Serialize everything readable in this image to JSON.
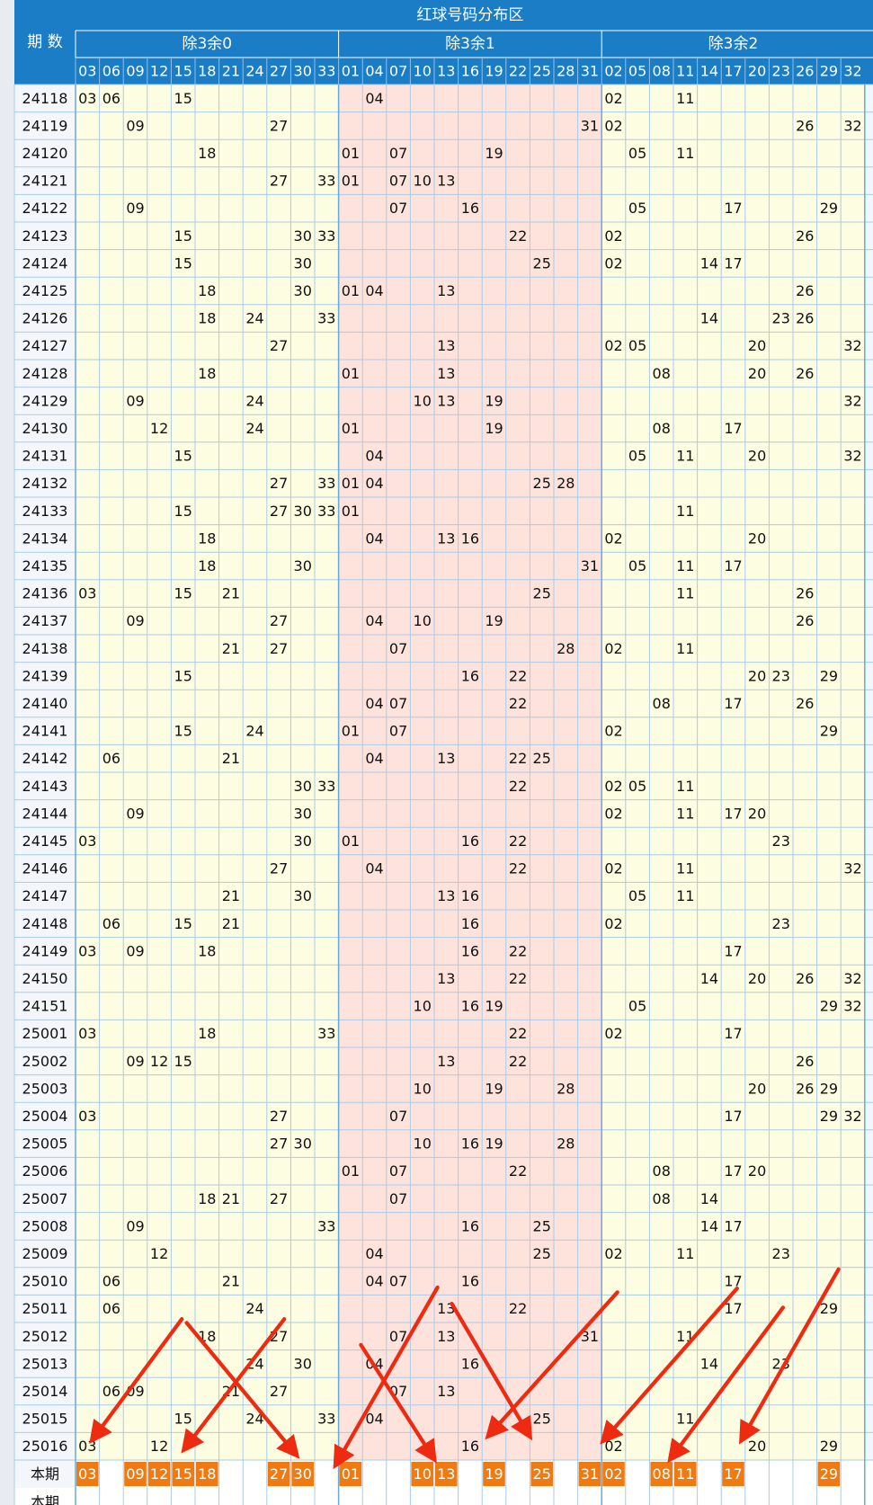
{
  "header": {
    "title": "红球号码分布区",
    "period_label": "期 数"
  },
  "groups": [
    {
      "name": "除3余0",
      "numbers": [
        "03",
        "06",
        "09",
        "12",
        "15",
        "18",
        "21",
        "24",
        "27",
        "30",
        "33"
      ]
    },
    {
      "name": "除3余1",
      "numbers": [
        "01",
        "04",
        "07",
        "10",
        "13",
        "16",
        "19",
        "22",
        "25",
        "28",
        "31"
      ]
    },
    {
      "name": "除3余2",
      "numbers": [
        "02",
        "05",
        "08",
        "11",
        "14",
        "17",
        "20",
        "23",
        "26",
        "29",
        "32"
      ]
    }
  ],
  "rows": [
    {
      "period": "24118",
      "hits": [
        "03",
        "06",
        "15",
        "04",
        "02",
        "11"
      ]
    },
    {
      "period": "24119",
      "hits": [
        "09",
        "27",
        "31",
        "02",
        "26",
        "32"
      ]
    },
    {
      "period": "24120",
      "hits": [
        "18",
        "01",
        "07",
        "19",
        "05",
        "11"
      ]
    },
    {
      "period": "24121",
      "hits": [
        "27",
        "33",
        "01",
        "07",
        "10",
        "13"
      ]
    },
    {
      "period": "24122",
      "hits": [
        "09",
        "07",
        "16",
        "05",
        "17",
        "29"
      ]
    },
    {
      "period": "24123",
      "hits": [
        "15",
        "30",
        "33",
        "22",
        "02",
        "26"
      ]
    },
    {
      "period": "24124",
      "hits": [
        "15",
        "30",
        "25",
        "02",
        "14",
        "17"
      ]
    },
    {
      "period": "24125",
      "hits": [
        "18",
        "30",
        "01",
        "04",
        "13",
        "26"
      ]
    },
    {
      "period": "24126",
      "hits": [
        "18",
        "24",
        "33",
        "14",
        "23",
        "26"
      ]
    },
    {
      "period": "24127",
      "hits": [
        "27",
        "13",
        "02",
        "05",
        "20",
        "32"
      ]
    },
    {
      "period": "24128",
      "hits": [
        "18",
        "01",
        "13",
        "08",
        "20",
        "26"
      ]
    },
    {
      "period": "24129",
      "hits": [
        "09",
        "24",
        "10",
        "13",
        "19",
        "32"
      ]
    },
    {
      "period": "24130",
      "hits": [
        "12",
        "24",
        "01",
        "19",
        "08",
        "17"
      ]
    },
    {
      "period": "24131",
      "hits": [
        "15",
        "04",
        "05",
        "11",
        "20",
        "32"
      ]
    },
    {
      "period": "24132",
      "hits": [
        "27",
        "33",
        "01",
        "04",
        "25",
        "28"
      ]
    },
    {
      "period": "24133",
      "hits": [
        "15",
        "27",
        "30",
        "33",
        "01",
        "11"
      ]
    },
    {
      "period": "24134",
      "hits": [
        "18",
        "04",
        "13",
        "16",
        "02",
        "20"
      ]
    },
    {
      "period": "24135",
      "hits": [
        "18",
        "30",
        "31",
        "05",
        "11",
        "17"
      ]
    },
    {
      "period": "24136",
      "hits": [
        "03",
        "15",
        "21",
        "25",
        "11",
        "26"
      ]
    },
    {
      "period": "24137",
      "hits": [
        "09",
        "27",
        "04",
        "10",
        "19",
        "26"
      ]
    },
    {
      "period": "24138",
      "hits": [
        "21",
        "27",
        "07",
        "28",
        "02",
        "11"
      ]
    },
    {
      "period": "24139",
      "hits": [
        "15",
        "16",
        "22",
        "20",
        "23",
        "29"
      ]
    },
    {
      "period": "24140",
      "hits": [
        "04",
        "07",
        "22",
        "08",
        "17",
        "26"
      ]
    },
    {
      "period": "24141",
      "hits": [
        "15",
        "24",
        "01",
        "07",
        "02",
        "29"
      ]
    },
    {
      "period": "24142",
      "hits": [
        "06",
        "21",
        "04",
        "13",
        "22",
        "25"
      ]
    },
    {
      "period": "24143",
      "hits": [
        "30",
        "33",
        "22",
        "02",
        "05",
        "11"
      ]
    },
    {
      "period": "24144",
      "hits": [
        "09",
        "30",
        "02",
        "11",
        "17",
        "20"
      ]
    },
    {
      "period": "24145",
      "hits": [
        "03",
        "30",
        "01",
        "16",
        "22",
        "23"
      ]
    },
    {
      "period": "24146",
      "hits": [
        "27",
        "04",
        "22",
        "02",
        "11",
        "32"
      ]
    },
    {
      "period": "24147",
      "hits": [
        "21",
        "30",
        "13",
        "16",
        "05",
        "11"
      ]
    },
    {
      "period": "24148",
      "hits": [
        "06",
        "15",
        "21",
        "16",
        "02",
        "23"
      ]
    },
    {
      "period": "24149",
      "hits": [
        "03",
        "09",
        "18",
        "16",
        "22",
        "17"
      ]
    },
    {
      "period": "24150",
      "hits": [
        "13",
        "22",
        "14",
        "20",
        "26",
        "32"
      ]
    },
    {
      "period": "24151",
      "hits": [
        "10",
        "16",
        "19",
        "05",
        "29",
        "32"
      ]
    },
    {
      "period": "25001",
      "hits": [
        "03",
        "18",
        "33",
        "22",
        "02",
        "17"
      ]
    },
    {
      "period": "25002",
      "hits": [
        "09",
        "12",
        "15",
        "13",
        "22",
        "26"
      ]
    },
    {
      "period": "25003",
      "hits": [
        "10",
        "19",
        "28",
        "20",
        "26",
        "29"
      ]
    },
    {
      "period": "25004",
      "hits": [
        "03",
        "27",
        "07",
        "17",
        "29",
        "32"
      ]
    },
    {
      "period": "25005",
      "hits": [
        "27",
        "30",
        "10",
        "16",
        "19",
        "28"
      ]
    },
    {
      "period": "25006",
      "hits": [
        "01",
        "07",
        "22",
        "08",
        "17",
        "20"
      ]
    },
    {
      "period": "25007",
      "hits": [
        "18",
        "21",
        "27",
        "07",
        "08",
        "14"
      ]
    },
    {
      "period": "25008",
      "hits": [
        "09",
        "33",
        "16",
        "25",
        "14",
        "17"
      ]
    },
    {
      "period": "25009",
      "hits": [
        "12",
        "04",
        "25",
        "02",
        "11",
        "23"
      ]
    },
    {
      "period": "25010",
      "hits": [
        "06",
        "21",
        "04",
        "07",
        "16",
        "17"
      ]
    },
    {
      "period": "25011",
      "hits": [
        "06",
        "24",
        "13",
        "22",
        "17",
        "29"
      ]
    },
    {
      "period": "25012",
      "hits": [
        "18",
        "27",
        "07",
        "13",
        "31",
        "11"
      ]
    },
    {
      "period": "25013",
      "hits": [
        "24",
        "30",
        "04",
        "16",
        "14",
        "23"
      ]
    },
    {
      "period": "25014",
      "hits": [
        "06",
        "09",
        "21",
        "27",
        "07",
        "13"
      ]
    },
    {
      "period": "25015",
      "hits": [
        "15",
        "24",
        "33",
        "04",
        "25",
        "11"
      ]
    },
    {
      "period": "25016",
      "hits": [
        "03",
        "12",
        "16",
        "02",
        "20",
        "29"
      ]
    }
  ],
  "current": {
    "label": "本期",
    "hits": [
      "03",
      "09",
      "12",
      "15",
      "18",
      "27",
      "30",
      "01",
      "10",
      "13",
      "19",
      "25",
      "31",
      "02",
      "08",
      "11",
      "17",
      "29"
    ]
  },
  "footer_label": "本期"
}
